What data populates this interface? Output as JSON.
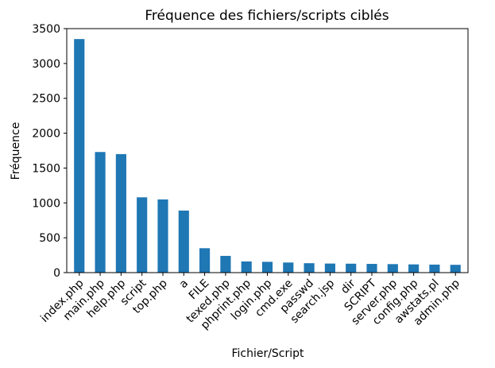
{
  "chart_data": {
    "type": "bar",
    "title": "Fréquence des fichiers/scripts ciblés",
    "xlabel": "Fichier/Script",
    "ylabel": "Fréquence",
    "ylim": [
      0,
      3500
    ],
    "yticks": [
      0,
      500,
      1000,
      1500,
      2000,
      2500,
      3000,
      3500
    ],
    "grid": false,
    "bar_color": "#1f77b4",
    "categories": [
      "index.php",
      "main.php",
      "help.php",
      "script",
      "top.php",
      "a",
      "FILE",
      "texed.php",
      "phprint.php",
      "login.php",
      "cmd.exe",
      "passwd",
      "search.jsp",
      "dir",
      "SCRIPT",
      "server.php",
      "config.php",
      "awstats.pl",
      "admin.php"
    ],
    "values": [
      3350,
      1730,
      1700,
      1080,
      1050,
      890,
      350,
      240,
      160,
      155,
      145,
      135,
      130,
      128,
      125,
      122,
      118,
      115,
      112
    ]
  }
}
